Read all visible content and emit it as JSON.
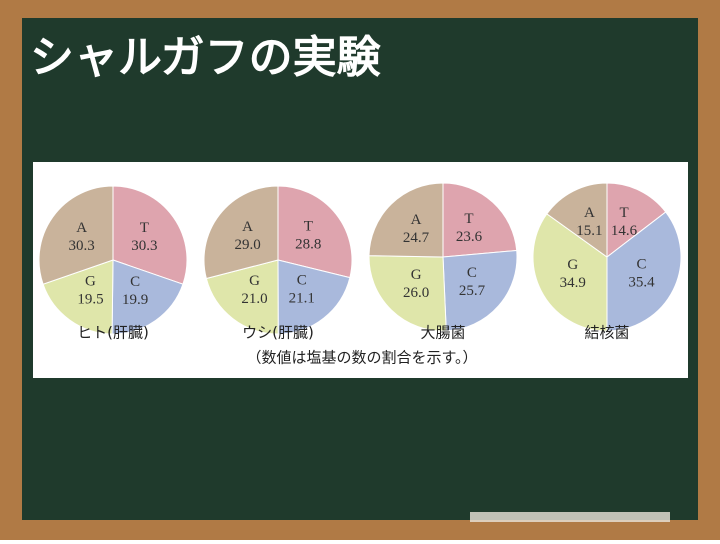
{
  "title": "シャルガフの実験",
  "note": "（数値は塩基の数の割合を示す。）",
  "chart_data": [
    {
      "type": "pie",
      "title": "ヒト(肝臓)",
      "categories": [
        "T",
        "C",
        "G",
        "A"
      ],
      "values": [
        30.3,
        19.9,
        19.5,
        30.3
      ],
      "value_labels": [
        "30.3",
        "19.9",
        "19.5",
        "30.3"
      ],
      "colors": [
        "#dea4ae",
        "#a9b9dc",
        "#dfe6aa",
        "#c9b39b"
      ]
    },
    {
      "type": "pie",
      "title": "ウシ(肝臓)",
      "categories": [
        "T",
        "C",
        "G",
        "A"
      ],
      "values": [
        28.8,
        21.1,
        21.0,
        29.0
      ],
      "value_labels": [
        "28.8",
        "21.1",
        "21.0",
        "29.0"
      ],
      "colors": [
        "#dea4ae",
        "#a9b9dc",
        "#dfe6aa",
        "#c9b39b"
      ]
    },
    {
      "type": "pie",
      "title": "大腸菌",
      "categories": [
        "T",
        "C",
        "G",
        "A"
      ],
      "values": [
        23.6,
        25.7,
        26.0,
        24.7
      ],
      "value_labels": [
        "23.6",
        "25.7",
        "26.0",
        "24.7"
      ],
      "colors": [
        "#dea4ae",
        "#a9b9dc",
        "#dfe6aa",
        "#c9b39b"
      ]
    },
    {
      "type": "pie",
      "title": "結核菌",
      "categories": [
        "T",
        "C",
        "G",
        "A"
      ],
      "values": [
        14.6,
        35.4,
        34.9,
        15.1
      ],
      "value_labels": [
        "14.6",
        "35.4",
        "34.9",
        "15.1"
      ],
      "colors": [
        "#dea4ae",
        "#a9b9dc",
        "#dfe6aa",
        "#c9b39b"
      ]
    }
  ]
}
